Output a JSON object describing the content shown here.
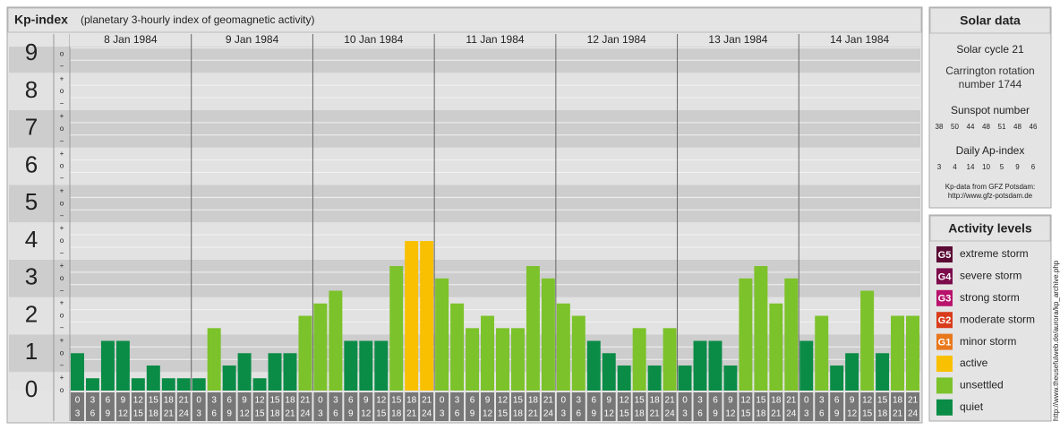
{
  "chart_data": {
    "type": "bar",
    "title": "Kp-index",
    "subtitle": "(planetary 3-hourly index of geomagnetic activity)",
    "days": [
      "8 Jan 1984",
      "9 Jan 1984",
      "10 Jan 1984",
      "11 Jan 1984",
      "12 Jan 1984",
      "13 Jan 1984",
      "14 Jan 1984"
    ],
    "hours": [
      "0",
      "3",
      "6",
      "9",
      "12",
      "15",
      "18",
      "21",
      "24"
    ],
    "values": [
      1,
      0.33,
      1.33,
      1.33,
      0.33,
      0.67,
      0.33,
      0.33,
      0.33,
      1.67,
      0.67,
      1,
      0.33,
      1,
      1,
      2,
      2.33,
      2.67,
      1.33,
      1.33,
      1.33,
      3.33,
      4,
      4,
      3,
      2.33,
      1.67,
      2,
      1.67,
      1.67,
      3.33,
      3,
      2.33,
      2,
      1.33,
      1,
      0.67,
      1.67,
      0.67,
      1.67,
      0.67,
      1.33,
      1.33,
      0.67,
      3,
      3.33,
      2.33,
      3,
      1.33,
      2,
      0.67,
      1,
      2.67,
      1,
      2,
      2
    ],
    "ylim": [
      0,
      9.2
    ],
    "yticks": [
      0,
      1,
      2,
      3,
      4,
      5,
      6,
      7,
      8,
      9
    ],
    "subticks": {
      "minus": "−",
      "zero": "o",
      "plus": "+"
    },
    "solar_data": {
      "title": "Solar data",
      "cycle": "Solar cycle 21",
      "carrington": "Carrington rotation number 1744",
      "sunspot_label": "Sunspot number",
      "sunspot": [
        38,
        50,
        44,
        48,
        51,
        48,
        46
      ],
      "ap_label": "Daily Ap-index",
      "ap": [
        3,
        4,
        14,
        10,
        5,
        9,
        6
      ],
      "source": "Kp-data from GFZ Potsdam:",
      "source_url": "http://www.gfz-potsdam.de"
    },
    "activity_levels": {
      "title": "Activity levels",
      "levels": [
        {
          "code": "G5",
          "label": "extreme storm",
          "color": "#5a0a34",
          "min_kp": 9
        },
        {
          "code": "G4",
          "label": "severe storm",
          "color": "#7c0c4c",
          "min_kp": 8
        },
        {
          "code": "G3",
          "label": "strong storm",
          "color": "#b8126c",
          "min_kp": 7
        },
        {
          "code": "G2",
          "label": "moderate storm",
          "color": "#d83c1c",
          "min_kp": 6
        },
        {
          "code": "G1",
          "label": "minor storm",
          "color": "#e8781c",
          "min_kp": 5
        },
        {
          "label": "active",
          "color": "#f8c000",
          "min_kp": 4
        },
        {
          "label": "unsettled",
          "color": "#7cc22a",
          "min_kp": 1.67
        },
        {
          "label": "quiet",
          "color": "#0a8c46",
          "min_kp": 0
        }
      ]
    },
    "watermark": "http://www.theusefulweb.de/aurora/kp_archive.php"
  }
}
